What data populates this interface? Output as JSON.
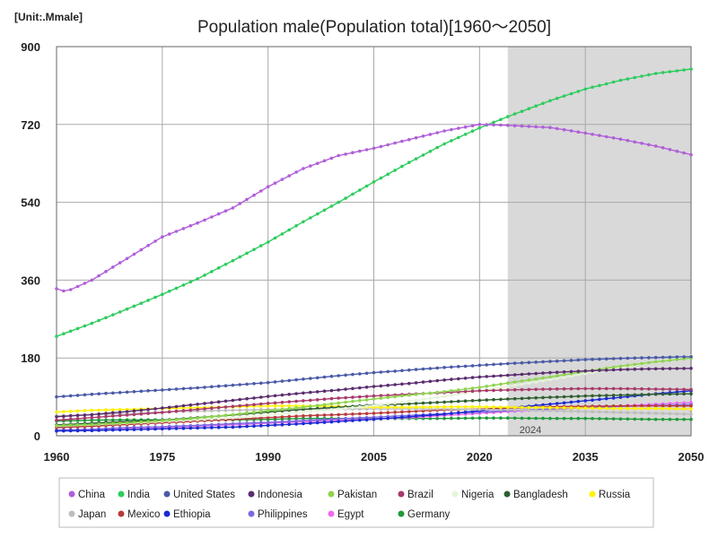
{
  "chart_data": {
    "type": "line",
    "title": "Population male(Population total)[1960～2050]",
    "unit_label": "[Unit:.Mmale]",
    "xlabel": "",
    "ylabel": "",
    "xlim": [
      1960,
      2050
    ],
    "ylim": [
      0,
      900
    ],
    "x_ticks": [
      1960,
      1975,
      1990,
      2005,
      2020,
      2035,
      2050
    ],
    "y_ticks": [
      0,
      180,
      360,
      540,
      720,
      900
    ],
    "grid": true,
    "legend_position": "bottom",
    "projection_shade": {
      "start": 2024,
      "end": 2050,
      "label": "2024",
      "color": "#d9d9d9"
    },
    "series": [
      {
        "name": "China",
        "color": "#b05fd9",
        "points": [
          [
            1960,
            340
          ],
          [
            1961,
            335
          ],
          [
            1962,
            338
          ],
          [
            1965,
            360
          ],
          [
            1970,
            410
          ],
          [
            1975,
            460
          ],
          [
            1980,
            492
          ],
          [
            1985,
            527
          ],
          [
            1990,
            576
          ],
          [
            1995,
            618
          ],
          [
            2000,
            648
          ],
          [
            2005,
            665
          ],
          [
            2010,
            685
          ],
          [
            2015,
            705
          ],
          [
            2020,
            720
          ],
          [
            2024,
            718
          ],
          [
            2030,
            713
          ],
          [
            2035,
            700
          ],
          [
            2040,
            686
          ],
          [
            2045,
            670
          ],
          [
            2050,
            650
          ]
        ]
      },
      {
        "name": "India",
        "color": "#2ecc5e",
        "points": [
          [
            1960,
            230
          ],
          [
            1965,
            260
          ],
          [
            1970,
            293
          ],
          [
            1975,
            327
          ],
          [
            1980,
            363
          ],
          [
            1985,
            405
          ],
          [
            1990,
            448
          ],
          [
            1995,
            495
          ],
          [
            2000,
            540
          ],
          [
            2005,
            587
          ],
          [
            2010,
            632
          ],
          [
            2015,
            675
          ],
          [
            2020,
            712
          ],
          [
            2024,
            738
          ],
          [
            2030,
            775
          ],
          [
            2035,
            802
          ],
          [
            2040,
            822
          ],
          [
            2045,
            838
          ],
          [
            2050,
            848
          ]
        ]
      },
      {
        "name": "United States",
        "color": "#4a5aa8",
        "points": [
          [
            1960,
            90
          ],
          [
            1965,
            96
          ],
          [
            1970,
            101
          ],
          [
            1975,
            106
          ],
          [
            1980,
            111
          ],
          [
            1985,
            117
          ],
          [
            1990,
            123
          ],
          [
            1995,
            131
          ],
          [
            2000,
            139
          ],
          [
            2005,
            146
          ],
          [
            2010,
            152
          ],
          [
            2015,
            158
          ],
          [
            2020,
            163
          ],
          [
            2024,
            167
          ],
          [
            2030,
            172
          ],
          [
            2035,
            176
          ],
          [
            2040,
            179
          ],
          [
            2045,
            181
          ],
          [
            2050,
            183
          ]
        ]
      },
      {
        "name": "Indonesia",
        "color": "#5a2d6e",
        "points": [
          [
            1960,
            44
          ],
          [
            1965,
            49
          ],
          [
            1970,
            56
          ],
          [
            1975,
            64
          ],
          [
            1980,
            73
          ],
          [
            1985,
            82
          ],
          [
            1990,
            91
          ],
          [
            1995,
            99
          ],
          [
            2000,
            106
          ],
          [
            2005,
            114
          ],
          [
            2010,
            121
          ],
          [
            2015,
            129
          ],
          [
            2020,
            136
          ],
          [
            2024,
            140
          ],
          [
            2030,
            146
          ],
          [
            2035,
            150
          ],
          [
            2040,
            153
          ],
          [
            2045,
            155
          ],
          [
            2050,
            156
          ]
        ]
      },
      {
        "name": "Pakistan",
        "color": "#8ed44d",
        "points": [
          [
            1960,
            23
          ],
          [
            1965,
            26
          ],
          [
            1970,
            30
          ],
          [
            1975,
            35
          ],
          [
            1980,
            41
          ],
          [
            1985,
            49
          ],
          [
            1990,
            58
          ],
          [
            1995,
            66
          ],
          [
            2000,
            76
          ],
          [
            2005,
            85
          ],
          [
            2010,
            94
          ],
          [
            2015,
            102
          ],
          [
            2020,
            112
          ],
          [
            2024,
            122
          ],
          [
            2030,
            136
          ],
          [
            2035,
            149
          ],
          [
            2040,
            161
          ],
          [
            2045,
            171
          ],
          [
            2050,
            180
          ]
        ]
      },
      {
        "name": "Brazil",
        "color": "#a83a6a",
        "points": [
          [
            1960,
            36
          ],
          [
            1965,
            42
          ],
          [
            1970,
            48
          ],
          [
            1975,
            54
          ],
          [
            1980,
            61
          ],
          [
            1985,
            68
          ],
          [
            1990,
            75
          ],
          [
            1995,
            81
          ],
          [
            2000,
            87
          ],
          [
            2005,
            92
          ],
          [
            2010,
            96
          ],
          [
            2015,
            100
          ],
          [
            2020,
            104
          ],
          [
            2024,
            106
          ],
          [
            2030,
            108
          ],
          [
            2035,
            109
          ],
          [
            2040,
            109
          ],
          [
            2045,
            108
          ],
          [
            2050,
            107
          ]
        ]
      },
      {
        "name": "Nigeria",
        "color": "#e6f5d8",
        "points": [
          [
            1960,
            23
          ],
          [
            1965,
            26
          ],
          [
            1970,
            29
          ],
          [
            1975,
            33
          ],
          [
            1980,
            37
          ],
          [
            1985,
            42
          ],
          [
            1990,
            48
          ],
          [
            1995,
            55
          ],
          [
            2000,
            62
          ],
          [
            2005,
            70
          ],
          [
            2010,
            80
          ],
          [
            2015,
            91
          ],
          [
            2020,
            104
          ],
          [
            2024,
            114
          ],
          [
            2030,
            130
          ],
          [
            2035,
            144
          ],
          [
            2040,
            158
          ],
          [
            2045,
            171
          ],
          [
            2050,
            184
          ]
        ]
      },
      {
        "name": "Bangladesh",
        "color": "#2f5e2f",
        "points": [
          [
            1960,
            25
          ],
          [
            1965,
            29
          ],
          [
            1970,
            33
          ],
          [
            1975,
            36
          ],
          [
            1980,
            42
          ],
          [
            1985,
            48
          ],
          [
            1990,
            55
          ],
          [
            1995,
            61
          ],
          [
            2000,
            66
          ],
          [
            2005,
            71
          ],
          [
            2010,
            74
          ],
          [
            2015,
            78
          ],
          [
            2020,
            82
          ],
          [
            2024,
            85
          ],
          [
            2030,
            89
          ],
          [
            2035,
            92
          ],
          [
            2040,
            94
          ],
          [
            2045,
            96
          ],
          [
            2050,
            97
          ]
        ]
      },
      {
        "name": "Russia",
        "color": "#fff200",
        "points": [
          [
            1960,
            55
          ],
          [
            1965,
            59
          ],
          [
            1970,
            61
          ],
          [
            1975,
            63
          ],
          [
            1980,
            65
          ],
          [
            1985,
            67
          ],
          [
            1990,
            69
          ],
          [
            1995,
            69
          ],
          [
            2000,
            68
          ],
          [
            2005,
            66
          ],
          [
            2010,
            66
          ],
          [
            2015,
            67
          ],
          [
            2020,
            67
          ],
          [
            2024,
            66
          ],
          [
            2030,
            65
          ],
          [
            2035,
            64
          ],
          [
            2040,
            63
          ],
          [
            2045,
            63
          ],
          [
            2050,
            62
          ]
        ]
      },
      {
        "name": "Japan",
        "color": "#bdbdbd",
        "points": [
          [
            1960,
            46
          ],
          [
            1965,
            49
          ],
          [
            1970,
            51
          ],
          [
            1975,
            55
          ],
          [
            1980,
            57
          ],
          [
            1985,
            59
          ],
          [
            1990,
            61
          ],
          [
            1995,
            62
          ],
          [
            2000,
            62
          ],
          [
            2005,
            62
          ],
          [
            2010,
            62
          ],
          [
            2015,
            62
          ],
          [
            2020,
            61
          ],
          [
            2024,
            60
          ],
          [
            2030,
            58
          ],
          [
            2035,
            56
          ],
          [
            2040,
            54
          ],
          [
            2045,
            52
          ],
          [
            2050,
            50
          ]
        ]
      },
      {
        "name": "Mexico",
        "color": "#b83a3a",
        "points": [
          [
            1960,
            19
          ],
          [
            1965,
            22
          ],
          [
            1970,
            26
          ],
          [
            1975,
            30
          ],
          [
            1980,
            34
          ],
          [
            1985,
            38
          ],
          [
            1990,
            42
          ],
          [
            1995,
            46
          ],
          [
            2000,
            49
          ],
          [
            2005,
            52
          ],
          [
            2010,
            56
          ],
          [
            2015,
            60
          ],
          [
            2020,
            62
          ],
          [
            2024,
            64
          ],
          [
            2030,
            67
          ],
          [
            2035,
            68
          ],
          [
            2040,
            69
          ],
          [
            2045,
            69
          ],
          [
            2050,
            69
          ]
        ]
      },
      {
        "name": "Ethiopia",
        "color": "#1a2bd1",
        "points": [
          [
            1960,
            11
          ],
          [
            1965,
            12
          ],
          [
            1970,
            14
          ],
          [
            1975,
            16
          ],
          [
            1980,
            18
          ],
          [
            1985,
            20
          ],
          [
            1990,
            24
          ],
          [
            1995,
            28
          ],
          [
            2000,
            33
          ],
          [
            2005,
            38
          ],
          [
            2010,
            44
          ],
          [
            2015,
            50
          ],
          [
            2020,
            58
          ],
          [
            2024,
            64
          ],
          [
            2030,
            73
          ],
          [
            2035,
            81
          ],
          [
            2040,
            89
          ],
          [
            2045,
            97
          ],
          [
            2050,
            104
          ]
        ]
      },
      {
        "name": "Philippines",
        "color": "#7a6ae0",
        "points": [
          [
            1960,
            13
          ],
          [
            1965,
            15
          ],
          [
            1970,
            19
          ],
          [
            1975,
            21
          ],
          [
            1980,
            24
          ],
          [
            1985,
            28
          ],
          [
            1990,
            31
          ],
          [
            1995,
            35
          ],
          [
            2000,
            39
          ],
          [
            2005,
            43
          ],
          [
            2010,
            47
          ],
          [
            2015,
            51
          ],
          [
            2020,
            55
          ],
          [
            2024,
            58
          ],
          [
            2030,
            62
          ],
          [
            2035,
            65
          ],
          [
            2040,
            68
          ],
          [
            2045,
            70
          ],
          [
            2050,
            72
          ]
        ]
      },
      {
        "name": "Egypt",
        "color": "#ef6bef",
        "points": [
          [
            1960,
            13
          ],
          [
            1965,
            15
          ],
          [
            1970,
            17
          ],
          [
            1975,
            19
          ],
          [
            1980,
            22
          ],
          [
            1985,
            25
          ],
          [
            1990,
            29
          ],
          [
            1995,
            32
          ],
          [
            2000,
            36
          ],
          [
            2005,
            39
          ],
          [
            2010,
            42
          ],
          [
            2015,
            47
          ],
          [
            2020,
            52
          ],
          [
            2024,
            56
          ],
          [
            2030,
            61
          ],
          [
            2035,
            65
          ],
          [
            2040,
            69
          ],
          [
            2045,
            73
          ],
          [
            2050,
            77
          ]
        ]
      },
      {
        "name": "Germany",
        "color": "#1f9a3a",
        "points": [
          [
            1960,
            34
          ],
          [
            1965,
            36
          ],
          [
            1970,
            37
          ],
          [
            1975,
            37
          ],
          [
            1980,
            37
          ],
          [
            1985,
            37
          ],
          [
            1990,
            38
          ],
          [
            1995,
            40
          ],
          [
            2000,
            40
          ],
          [
            2005,
            40
          ],
          [
            2010,
            40
          ],
          [
            2015,
            40
          ],
          [
            2020,
            41
          ],
          [
            2024,
            41
          ],
          [
            2030,
            40
          ],
          [
            2035,
            40
          ],
          [
            2040,
            39
          ],
          [
            2045,
            38
          ],
          [
            2050,
            38
          ]
        ]
      }
    ]
  }
}
